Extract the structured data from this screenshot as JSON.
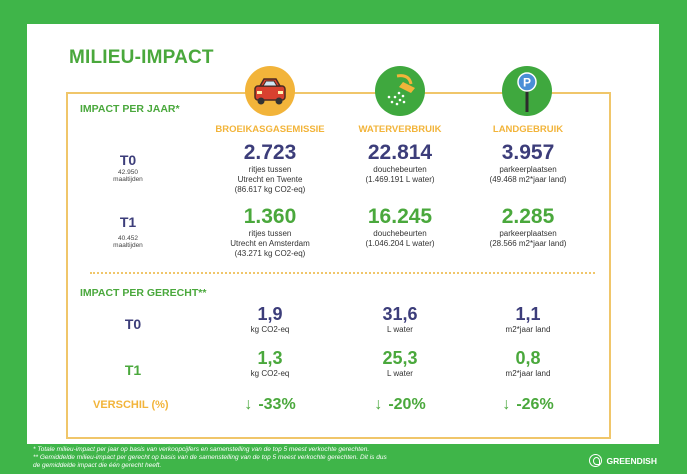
{
  "title": "MILIEU-IMPACT",
  "per_year": {
    "heading": "IMPACT PER JAAR*",
    "columns": [
      {
        "label": "BROEIKASGASEMISSIE",
        "icon": "car-icon"
      },
      {
        "label": "WATERVERBRUIK",
        "icon": "shower-icon"
      },
      {
        "label": "LANDGEBRUIK",
        "icon": "parking-icon"
      }
    ],
    "rows": [
      {
        "label": "T0",
        "meals_value": "42.950",
        "meals_unit": "maaltijden",
        "cells": [
          {
            "value": "2.723",
            "line1": "ritjes tussen",
            "line2": "Utrecht en Twente",
            "line3": "(86.617 kg CO2-eq)"
          },
          {
            "value": "22.814",
            "line1": "douchebeurten",
            "line2": "(1.469.191 L water)",
            "line3": ""
          },
          {
            "value": "3.957",
            "line1": "parkeerplaatsen",
            "line2": "(49.468 m2*jaar land)",
            "line3": ""
          }
        ]
      },
      {
        "label": "T1",
        "meals_value": "40.452",
        "meals_unit": "maaltijden",
        "cells": [
          {
            "value": "1.360",
            "line1": "ritjes tussen",
            "line2": "Utrecht en Amsterdam",
            "line3": "(43.271 kg CO2-eq)"
          },
          {
            "value": "16.245",
            "line1": "douchebeurten",
            "line2": "(1.046.204 L water)",
            "line3": ""
          },
          {
            "value": "2.285",
            "line1": "parkeerplaatsen",
            "line2": "(28.566 m2*jaar land)",
            "line3": ""
          }
        ]
      }
    ]
  },
  "per_dish": {
    "heading": "IMPACT PER GERECHT**",
    "rows": [
      {
        "label": "T0",
        "cells": [
          {
            "value": "1,9",
            "unit": "kg CO2-eq"
          },
          {
            "value": "31,6",
            "unit": "L water"
          },
          {
            "value": "1,1",
            "unit": "m2*jaar land"
          }
        ]
      },
      {
        "label": "T1",
        "cells": [
          {
            "value": "1,3",
            "unit": "kg CO2-eq"
          },
          {
            "value": "25,3",
            "unit": "L water"
          },
          {
            "value": "0,8",
            "unit": "m2*jaar land"
          }
        ]
      }
    ],
    "difference": {
      "label": "VERSCHIL (%)",
      "arrow": "↓",
      "values": [
        "-33%",
        "-20%",
        "-26%"
      ]
    }
  },
  "footnotes": {
    "line1": "* Totale milieu-impact per jaar op basis van verkoopcijfers en samenstelling van de top 5 meest verkochte gerechten.",
    "line2": "** Gemiddelde milieu-impact per gerecht op basis van de samenstelling van de top 5 meest verkochte gerechten. Dit is dus",
    "line3": "de gemiddelde impact die één gerecht heeft."
  },
  "brand": "GREENDISH",
  "colors": {
    "green": "#4aa83c",
    "navy": "#3c3d7a",
    "gold": "#f2b43a",
    "frame": "#3fb549"
  }
}
